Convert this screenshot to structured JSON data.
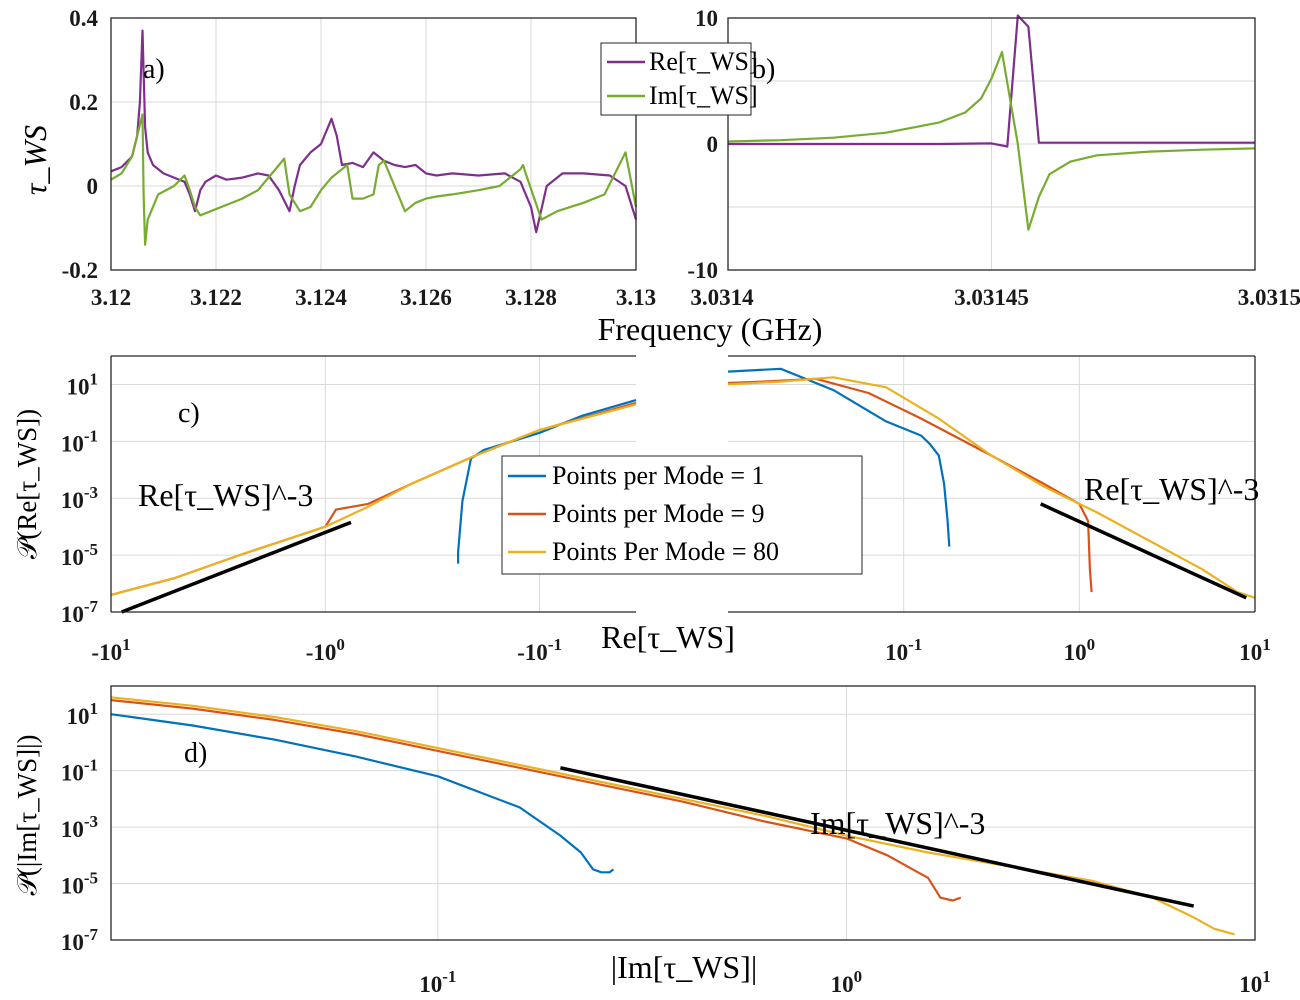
{
  "chart_data": [
    {
      "id": "a",
      "type": "line",
      "panel_label": "a)",
      "ylabel": "τ_WS",
      "xlabel": "Frequency (GHz)",
      "xlim": [
        3.12,
        3.13
      ],
      "ylim": [
        -0.2,
        0.4
      ],
      "xticks": [
        "3.12",
        "3.122",
        "3.124",
        "3.126",
        "3.128",
        "3.13"
      ],
      "yticks": [
        "-0.2",
        "0",
        "0.2",
        "0.4"
      ],
      "legend": [
        "Re[τ_WS]",
        "Im[τ_WS]"
      ],
      "series": [
        {
          "name": "Re[τ_WS]",
          "color": "#7e2f8e",
          "x": [
            3.12,
            3.1202,
            3.1204,
            3.1205,
            3.12055,
            3.1206,
            3.12065,
            3.1207,
            3.1208,
            3.121,
            3.1212,
            3.1214,
            3.1215,
            3.1216,
            3.1217,
            3.1218,
            3.122,
            3.1222,
            3.1225,
            3.1228,
            3.123,
            3.1232,
            3.1234,
            3.1235,
            3.1236,
            3.1238,
            3.124,
            3.1242,
            3.1243,
            3.1244,
            3.1246,
            3.1248,
            3.125,
            3.1252,
            3.1254,
            3.1256,
            3.1258,
            3.126,
            3.1262,
            3.1265,
            3.127,
            3.1275,
            3.1278,
            3.128,
            3.1281,
            3.1283,
            3.1286,
            3.129,
            3.1295,
            3.1298,
            3.13
          ],
          "y": [
            0.035,
            0.045,
            0.07,
            0.12,
            0.2,
            0.37,
            0.14,
            0.08,
            0.05,
            0.03,
            0.02,
            0.01,
            -0.02,
            -0.06,
            -0.01,
            0.01,
            0.025,
            0.015,
            0.02,
            0.03,
            0.025,
            -0.01,
            -0.06,
            0.0,
            0.05,
            0.08,
            0.1,
            0.16,
            0.12,
            0.05,
            0.055,
            0.045,
            0.08,
            0.06,
            0.05,
            0.045,
            0.05,
            0.03,
            0.025,
            0.03,
            0.025,
            0.03,
            0.01,
            -0.05,
            -0.11,
            0.0,
            0.03,
            0.03,
            0.025,
            0.0,
            -0.08
          ]
        },
        {
          "name": "Im[τ_WS]",
          "color": "#77ac30",
          "x": [
            3.12,
            3.1202,
            3.1204,
            3.1205,
            3.1206,
            3.12062,
            3.12065,
            3.1207,
            3.1209,
            3.1212,
            3.1214,
            3.1215,
            3.1216,
            3.1217,
            3.1219,
            3.1222,
            3.1225,
            3.1228,
            3.123,
            3.1232,
            3.1233,
            3.1234,
            3.1236,
            3.1238,
            3.124,
            3.1242,
            3.1244,
            3.1245,
            3.1246,
            3.1248,
            3.125,
            3.1251,
            3.1252,
            3.1254,
            3.1256,
            3.1258,
            3.126,
            3.1262,
            3.1265,
            3.127,
            3.1274,
            3.1276,
            3.1278,
            3.12785,
            3.1279,
            3.1282,
            3.1285,
            3.129,
            3.1294,
            3.1296,
            3.1298,
            3.13
          ],
          "y": [
            0.015,
            0.03,
            0.07,
            0.12,
            0.17,
            -0.02,
            -0.14,
            -0.08,
            -0.02,
            0.0,
            0.025,
            -0.01,
            -0.05,
            -0.07,
            -0.06,
            -0.045,
            -0.03,
            -0.01,
            0.02,
            0.05,
            0.065,
            -0.02,
            -0.06,
            -0.05,
            -0.01,
            0.02,
            0.04,
            0.05,
            -0.03,
            -0.03,
            -0.02,
            0.05,
            0.06,
            0.0,
            -0.06,
            -0.04,
            -0.03,
            -0.025,
            -0.02,
            -0.01,
            0.0,
            0.02,
            0.04,
            0.05,
            0.03,
            -0.08,
            -0.06,
            -0.04,
            -0.02,
            0.03,
            0.08,
            -0.05
          ]
        }
      ]
    },
    {
      "id": "b",
      "type": "line",
      "panel_label": "b)",
      "xlim": [
        3.0314,
        3.0315
      ],
      "ylim": [
        -10,
        10
      ],
      "xticks": [
        "3.0314",
        "3.03145",
        "3.0315"
      ],
      "yticks": [
        "-10",
        "0",
        "10"
      ],
      "series": [
        {
          "name": "Re[τ_WS]",
          "color": "#7e2f8e",
          "x": [
            3.0314,
            3.03142,
            3.03144,
            3.03145,
            3.031453,
            3.031455,
            3.031457,
            3.031459,
            3.031461,
            3.031463,
            3.03147,
            3.03148,
            3.03149,
            3.0315
          ],
          "y": [
            0.0,
            0.0,
            0.0,
            0.05,
            -0.2,
            10.2,
            9.3,
            0.1,
            0.1,
            0.1,
            0.1,
            0.1,
            0.1,
            0.1
          ]
        },
        {
          "name": "Im[τ_WS]",
          "color": "#77ac30",
          "x": [
            3.0314,
            3.03141,
            3.03142,
            3.03143,
            3.03144,
            3.031445,
            3.031448,
            3.03145,
            3.031452,
            3.031455,
            3.031457,
            3.031459,
            3.031461,
            3.031465,
            3.03147,
            3.03148,
            3.03149,
            3.0315
          ],
          "y": [
            0.2,
            0.3,
            0.5,
            0.9,
            1.7,
            2.5,
            3.6,
            5.2,
            7.3,
            0.0,
            -6.8,
            -4.2,
            -2.4,
            -1.4,
            -0.9,
            -0.6,
            -0.45,
            -0.35
          ]
        }
      ]
    },
    {
      "id": "c",
      "type": "line",
      "scale": "log-log",
      "panel_label": "c)",
      "ylabel": "𝒫(Re[τ_WS])",
      "xlabel": "Re[τ_WS]",
      "yticks": [
        "10^1",
        "10^-1",
        "10^-3",
        "10^-5",
        "10^-7"
      ],
      "left_xticks": [
        "-10^1",
        "-10^0",
        "-10^-1"
      ],
      "right_xticks": [
        "10^-1",
        "10^0",
        "10^1"
      ],
      "ylim_log10": [
        -7,
        2
      ],
      "left_xlim_log10_abs": [
        1.0,
        -1.45
      ],
      "right_xlim_log10": [
        -2,
        1
      ],
      "annotations": [
        "Re[τ_WS]^-3",
        "Re[τ_WS]^-3"
      ],
      "legend": [
        "Points per Mode = 1",
        "Points per Mode = 9",
        "Points Per Mode = 80"
      ],
      "series": [
        {
          "name": "Points per Mode = 1",
          "color": "#0072bd",
          "left_x_abs_log10": [
            -0.62,
            -0.62,
            -0.64,
            -0.68,
            -0.74,
            -0.85,
            -1.0,
            -1.2,
            -1.45
          ],
          "left_y_log10": [
            -5.3,
            -4.9,
            -3.1,
            -1.6,
            -1.3,
            -1.05,
            -0.7,
            -0.1,
            0.45
          ],
          "right_x_log10": [
            -2.0,
            -1.7,
            -1.4,
            -1.1,
            -0.9,
            -0.85,
            -0.8,
            -0.77,
            -0.75,
            -0.74
          ],
          "right_y_log10": [
            1.45,
            1.55,
            0.8,
            -0.3,
            -0.8,
            -1.1,
            -1.5,
            -2.5,
            -3.8,
            -4.7
          ]
        },
        {
          "name": "Points per Mode = 9",
          "color": "#d95319",
          "left_x_abs_log10": [
            1.0,
            0.7,
            0.4,
            0.2,
            0.0,
            -0.05,
            -0.2,
            -0.4,
            -0.7,
            -1.0,
            -1.45
          ],
          "left_y_log10": [
            -6.4,
            -5.8,
            -5.0,
            -4.5,
            -4.0,
            -3.4,
            -3.2,
            -2.5,
            -1.5,
            -0.6,
            0.35
          ],
          "right_x_log10": [
            -2.0,
            -1.8,
            -1.5,
            -1.2,
            -0.9,
            -0.5,
            -0.2,
            0.0,
            0.05,
            0.06,
            0.07
          ],
          "right_y_log10": [
            1.05,
            1.1,
            1.2,
            0.7,
            -0.2,
            -1.5,
            -2.5,
            -3.2,
            -3.8,
            -5.5,
            -6.3
          ]
        },
        {
          "name": "Points Per Mode = 80",
          "color": "#edb120",
          "left_x_abs_log10": [
            1.0,
            0.7,
            0.4,
            0.2,
            0.0,
            -0.2,
            -0.4,
            -0.7,
            -1.0,
            -1.45
          ],
          "left_y_log10": [
            -6.4,
            -5.8,
            -5.0,
            -4.5,
            -4.0,
            -3.3,
            -2.5,
            -1.5,
            -0.6,
            0.3
          ],
          "right_x_log10": [
            -2.0,
            -1.7,
            -1.4,
            -1.1,
            -0.8,
            -0.5,
            -0.2,
            0.1,
            0.4,
            0.7,
            0.9,
            1.0
          ],
          "right_y_log10": [
            1.0,
            1.1,
            1.25,
            0.9,
            -0.2,
            -1.5,
            -2.6,
            -3.5,
            -4.5,
            -5.5,
            -6.3,
            -6.5
          ]
        }
      ],
      "reference_lines": [
        {
          "label": "Re[τ_WS]^-3",
          "side": "left",
          "x_abs_log10": [
            0.95,
            -0.12
          ],
          "y_log10": [
            -7.0,
            -3.85
          ]
        },
        {
          "label": "Re[τ_WS]^-3",
          "side": "right",
          "x_log10": [
            -0.22,
            0.95
          ],
          "y_log10": [
            -3.2,
            -6.5
          ]
        }
      ]
    },
    {
      "id": "d",
      "type": "line",
      "scale": "log-log",
      "panel_label": "d)",
      "ylabel": "𝒫(|Im[τ_WS]|)",
      "xlabel": "|Im[τ_WS]|",
      "xticks": [
        "10^-1",
        "10^0",
        "10^1"
      ],
      "yticks": [
        "10^1",
        "10^-1",
        "10^-3",
        "10^-5",
        "10^-7"
      ],
      "xlim_log10": [
        -1.8,
        1.0
      ],
      "ylim_log10": [
        -7,
        2
      ],
      "annotation": "Im[τ_WS]^-3",
      "series": [
        {
          "name": "Points per Mode = 1",
          "color": "#0072bd",
          "x_log10": [
            -1.8,
            -1.6,
            -1.4,
            -1.2,
            -1.0,
            -0.8,
            -0.7,
            -0.65,
            -0.62,
            -0.6,
            -0.58,
            -0.57
          ],
          "y_log10": [
            1.0,
            0.6,
            0.1,
            -0.5,
            -1.2,
            -2.3,
            -3.3,
            -3.9,
            -4.5,
            -4.6,
            -4.6,
            -4.5
          ]
        },
        {
          "name": "Points per Mode = 9",
          "color": "#d95319",
          "x_log10": [
            -1.8,
            -1.6,
            -1.4,
            -1.2,
            -1.0,
            -0.8,
            -0.6,
            -0.4,
            -0.2,
            0.0,
            0.1,
            0.2,
            0.23,
            0.26,
            0.28
          ],
          "y_log10": [
            1.5,
            1.2,
            0.8,
            0.3,
            -0.3,
            -0.9,
            -1.5,
            -2.1,
            -2.8,
            -3.4,
            -4.0,
            -4.8,
            -5.5,
            -5.6,
            -5.5
          ]
        },
        {
          "name": "Points Per Mode = 80",
          "color": "#edb120",
          "x_log10": [
            -1.8,
            -1.6,
            -1.4,
            -1.2,
            -1.0,
            -0.8,
            -0.6,
            -0.4,
            -0.2,
            0.0,
            0.2,
            0.4,
            0.6,
            0.75,
            0.85,
            0.9,
            0.95
          ],
          "y_log10": [
            1.6,
            1.3,
            0.9,
            0.4,
            -0.2,
            -0.8,
            -1.4,
            -2.0,
            -2.6,
            -3.3,
            -3.9,
            -4.4,
            -4.9,
            -5.5,
            -6.2,
            -6.6,
            -6.8
          ]
        }
      ],
      "reference_line": {
        "label": "Im[τ_WS]^-3",
        "x_log10": [
          -0.7,
          0.85
        ],
        "y_log10": [
          -0.9,
          -5.8
        ]
      }
    }
  ]
}
